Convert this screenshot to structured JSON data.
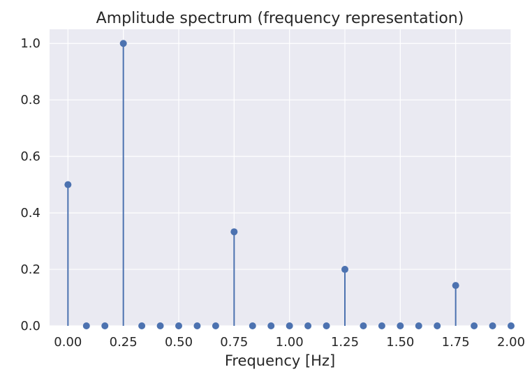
{
  "chart_data": {
    "type": "stem",
    "title": "Amplitude spectrum (frequency representation)",
    "xlabel": "Frequency [Hz]",
    "ylabel": "",
    "xlim": [
      -0.083,
      2.0
    ],
    "ylim": [
      0.0,
      1.05
    ],
    "x_ticks": [
      0.0,
      0.25,
      0.5,
      0.75,
      1.0,
      1.25,
      1.5,
      1.75,
      2.0
    ],
    "x_tick_labels": [
      "0.00",
      "0.25",
      "0.50",
      "0.75",
      "1.00",
      "1.25",
      "1.50",
      "1.75",
      "2.00"
    ],
    "y_ticks": [
      0.0,
      0.2,
      0.4,
      0.6,
      0.8,
      1.0
    ],
    "y_tick_labels": [
      "0.0",
      "0.2",
      "0.4",
      "0.6",
      "0.8",
      "1.0"
    ],
    "grid": true,
    "colors": {
      "marker": "#4c72b0",
      "plot_background": "#eaeaf2",
      "grid": "#ffffff"
    },
    "x": [
      0.0,
      0.0833,
      0.1667,
      0.25,
      0.3333,
      0.4167,
      0.5,
      0.5833,
      0.6667,
      0.75,
      0.8333,
      0.9167,
      1.0,
      1.0833,
      1.1667,
      1.25,
      1.3333,
      1.4167,
      1.5,
      1.5833,
      1.6667,
      1.75,
      1.8333,
      1.9167,
      2.0
    ],
    "values": [
      0.5,
      0.0,
      0.0,
      1.0,
      0.0,
      0.0,
      0.0,
      0.0,
      0.0,
      0.333,
      0.0,
      0.0,
      0.0,
      0.0,
      0.0,
      0.2,
      0.0,
      0.0,
      0.0,
      0.0,
      0.0,
      0.143,
      0.0,
      0.0,
      0.0
    ]
  }
}
